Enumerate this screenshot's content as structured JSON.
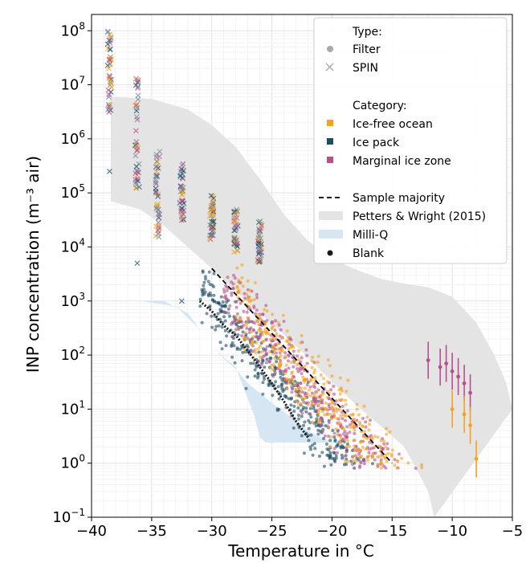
{
  "chart_data": {
    "type": "scatter",
    "xlabel": "Temperature in °C",
    "ylabel": "INP concentration (m⁻³ air)",
    "xlim": [
      -40,
      -5
    ],
    "ylim": [
      0.1,
      200000000
    ],
    "yscale": "log",
    "x_ticks": [
      -40,
      -35,
      -30,
      -25,
      -20,
      -15,
      -10,
      -5
    ],
    "x_tick_labels": [
      "−40",
      "−35",
      "−30",
      "−25",
      "−20",
      "−15",
      "−10",
      "−5"
    ],
    "y_ticks": [
      0.1,
      1,
      10,
      100,
      1000,
      10000,
      100000,
      1000000,
      10000000,
      100000000
    ],
    "y_tick_labels": [
      {
        "base": "10",
        "exp": "−1"
      },
      {
        "base": "10",
        "exp": "0"
      },
      {
        "base": "10",
        "exp": "1"
      },
      {
        "base": "10",
        "exp": "2"
      },
      {
        "base": "10",
        "exp": "3"
      },
      {
        "base": "10",
        "exp": "4"
      },
      {
        "base": "10",
        "exp": "5"
      },
      {
        "base": "10",
        "exp": "6"
      },
      {
        "base": "10",
        "exp": "7"
      },
      {
        "base": "10",
        "exp": "8"
      }
    ],
    "grid": true,
    "legend_position": "top-right",
    "legend": {
      "type_header": "Type:",
      "filter": "Filter",
      "spin": "SPIN",
      "category_header": "Category:",
      "ice_free": "Ice-free ocean",
      "ice_pack": "Ice pack",
      "marginal": "Marginal ice zone",
      "majority": "Sample majority",
      "petters": "Petters & Wright (2015)",
      "milliq": "Milli-Q",
      "blank": "Blank"
    },
    "colors": {
      "ice_free": "#f5a21e",
      "ice_pack": "#1c4d63",
      "marginal": "#b8508e",
      "petters": "#e4e4e4",
      "milliq": "#d6e6f3",
      "blank": "#1a1a1a"
    },
    "petters_upper": [
      [
        -38.4,
        6000000
      ],
      [
        -35,
        5500000
      ],
      [
        -32,
        3500000
      ],
      [
        -30,
        1800000
      ],
      [
        -28,
        700000
      ],
      [
        -26,
        180000
      ],
      [
        -24,
        40000
      ],
      [
        -22,
        13000
      ],
      [
        -20,
        6000
      ],
      [
        -18,
        3800
      ],
      [
        -16,
        2600
      ],
      [
        -14,
        2100
      ],
      [
        -12,
        1800
      ],
      [
        -10,
        1200
      ],
      [
        -8,
        400
      ],
      [
        -6.5,
        100
      ],
      [
        -5.5,
        30
      ],
      [
        -5,
        10
      ]
    ],
    "petters_lower": [
      [
        -38.4,
        70000
      ],
      [
        -36,
        50000
      ],
      [
        -34,
        25000
      ],
      [
        -32,
        10000
      ],
      [
        -30,
        4000
      ],
      [
        -28,
        1500
      ],
      [
        -26,
        600
      ],
      [
        -24,
        240
      ],
      [
        -22,
        90
      ],
      [
        -20,
        32
      ],
      [
        -18,
        12
      ],
      [
        -16,
        5
      ],
      [
        -14,
        2
      ],
      [
        -13,
        0.8
      ],
      [
        -12,
        0.3
      ],
      [
        -11.5,
        0.1
      ]
    ],
    "milliq_upper": [
      [
        -36,
        1000
      ],
      [
        -34,
        1000
      ],
      [
        -32,
        600
      ],
      [
        -31,
        300
      ],
      [
        -30,
        150
      ],
      [
        -29,
        85
      ],
      [
        -28,
        55
      ],
      [
        -27,
        30
      ],
      [
        -26,
        20
      ],
      [
        -25,
        13
      ],
      [
        -24,
        9
      ],
      [
        -23,
        6
      ],
      [
        -22,
        4
      ],
      [
        -21,
        3
      ],
      [
        -20,
        2.5
      ],
      [
        -19,
        2.4
      ]
    ],
    "milliq_lower": [
      [
        -36,
        1000
      ],
      [
        -33,
        800
      ],
      [
        -31,
        300
      ],
      [
        -30,
        150
      ],
      [
        -29,
        90
      ],
      [
        -28,
        60
      ],
      [
        -27.5,
        30
      ],
      [
        -26.5,
        8
      ],
      [
        -26,
        3
      ],
      [
        -25.5,
        2.4
      ],
      [
        -19,
        2.4
      ]
    ],
    "sample_majority": [
      [
        -30,
        4000
      ],
      [
        -15,
        1
      ]
    ],
    "blank_curve": [
      [
        -31,
        1000
      ],
      [
        -30,
        650
      ],
      [
        -29,
        350
      ],
      [
        -28,
        230
      ],
      [
        -27,
        120
      ],
      [
        -26,
        60
      ],
      [
        -25,
        30
      ],
      [
        -24,
        14
      ],
      [
        -23,
        6
      ],
      [
        -22,
        3
      ]
    ],
    "spin_columns": [
      {
        "x": -38.5,
        "ymin": 3000000,
        "ymax": 100000000,
        "outlier": 250000
      },
      {
        "x": -36.2,
        "ymin": 100000,
        "ymax": 15000000,
        "outlier": 5000
      },
      {
        "x": -34.5,
        "ymin": 15000,
        "ymax": 600000
      },
      {
        "x": -32.5,
        "ymin": 30000,
        "ymax": 350000,
        "outlier": 1000
      },
      {
        "x": -30,
        "ymin": 12000,
        "ymax": 100000
      },
      {
        "x": -28,
        "ymin": 8000,
        "ymax": 50000
      },
      {
        "x": -26,
        "ymin": 5000,
        "ymax": 30000
      }
    ],
    "filter_bands": [
      {
        "category": "ice_pack",
        "x0": -31,
        "y0_low": 800,
        "y0_high": 4000,
        "slope": -0.27,
        "x1": -14
      },
      {
        "category": "marginal",
        "x0": -29,
        "y0_low": 600,
        "y0_high": 4000,
        "slope": -0.25,
        "x1": -10
      },
      {
        "category": "ice_free",
        "x0": -28,
        "y0_low": 300,
        "y0_high": 3000,
        "slope": -0.24,
        "x1": -9
      }
    ],
    "error_bar_series": [
      {
        "category": "marginal",
        "points": [
          [
            -12,
            80
          ],
          [
            -11,
            60
          ],
          [
            -10.5,
            70
          ],
          [
            -10,
            50
          ],
          [
            -9.5,
            40
          ],
          [
            -9,
            30
          ],
          [
            -8.5,
            20
          ]
        ]
      },
      {
        "category": "ice_free",
        "points": [
          [
            -10,
            10
          ],
          [
            -9,
            8
          ],
          [
            -8.5,
            5
          ],
          [
            -8,
            1.2
          ]
        ]
      }
    ]
  }
}
